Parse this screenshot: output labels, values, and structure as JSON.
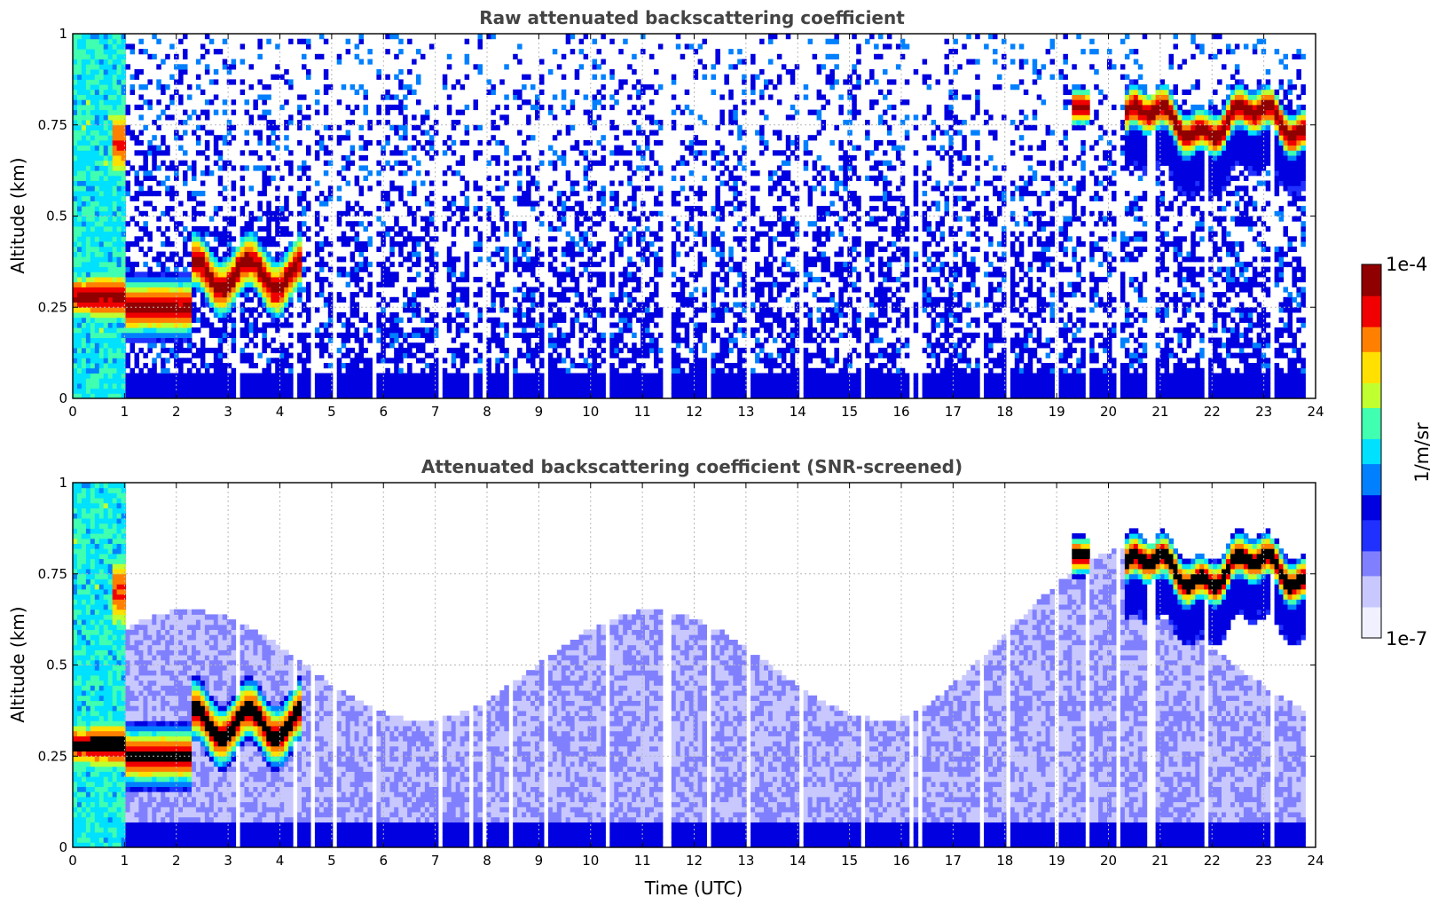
{
  "colors": {
    "colormap": [
      "#f0f0ff",
      "#c8c8ff",
      "#8080ff",
      "#2030ff",
      "#0000e0",
      "#0080ff",
      "#00e0ff",
      "#40ffb0",
      "#c0ff30",
      "#ffe000",
      "#ff8000",
      "#f00000",
      "#900000"
    ],
    "grid": "#b8b8b8",
    "saturated": "#000000"
  },
  "chart_data": [
    {
      "type": "heatmap",
      "title": "Raw attenuated backscattering coefficient",
      "xlabel": "",
      "ylabel": "Altitude (km)",
      "xlim": [
        0,
        24
      ],
      "ylim": [
        0,
        1
      ],
      "xticks": [
        "0",
        "1",
        "2",
        "3",
        "4",
        "5",
        "6",
        "7",
        "8",
        "9",
        "10",
        "11",
        "12",
        "13",
        "14",
        "15",
        "16",
        "17",
        "18",
        "19",
        "20",
        "21",
        "22",
        "23",
        "24"
      ],
      "yticks": [
        "0",
        "0.25",
        "0.5",
        "0.75",
        "1"
      ],
      "grid": true,
      "screened": false,
      "features": [
        {
          "x_range": [
            0,
            1.0
          ],
          "altitude": 0.28,
          "level": "high"
        },
        {
          "x_range": [
            1.0,
            2.3
          ],
          "altitude": 0.25,
          "level": "high"
        },
        {
          "x_range": [
            2.3,
            4.4
          ],
          "altitude": 0.35,
          "level": "high"
        },
        {
          "x_range": [
            19.3,
            19.6
          ],
          "altitude": 0.8,
          "level": "high"
        },
        {
          "x_range": [
            20.3,
            23.8
          ],
          "altitude": 0.76,
          "level": "high"
        }
      ]
    },
    {
      "type": "heatmap",
      "title": "Attenuated backscattering coefficient (SNR-screened)",
      "xlabel": "Time (UTC)",
      "ylabel": "Altitude (km)",
      "xlim": [
        0,
        24
      ],
      "ylim": [
        0,
        1
      ],
      "xticks": [
        "0",
        "1",
        "2",
        "3",
        "4",
        "5",
        "6",
        "7",
        "8",
        "9",
        "10",
        "11",
        "12",
        "13",
        "14",
        "15",
        "16",
        "17",
        "18",
        "19",
        "20",
        "21",
        "22",
        "23",
        "24"
      ],
      "yticks": [
        "0",
        "0.25",
        "0.5",
        "0.75",
        "1"
      ],
      "grid": true,
      "screened": true,
      "features": [
        {
          "x_range": [
            0,
            1.0
          ],
          "altitude": 0.28,
          "level": "high"
        },
        {
          "x_range": [
            1.0,
            2.3
          ],
          "altitude": 0.25,
          "level": "high"
        },
        {
          "x_range": [
            2.3,
            4.4
          ],
          "altitude": 0.35,
          "level": "high"
        },
        {
          "x_range": [
            19.3,
            19.6
          ],
          "altitude": 0.8,
          "level": "high"
        },
        {
          "x_range": [
            20.3,
            23.8
          ],
          "altitude": 0.76,
          "level": "high"
        }
      ]
    }
  ],
  "colorbar": {
    "max_label": "1e-4",
    "min_label": "1e-7",
    "units": "1/m/sr",
    "scale": "log"
  }
}
